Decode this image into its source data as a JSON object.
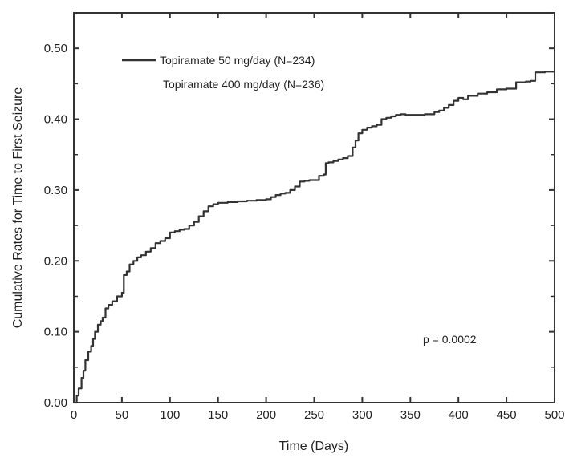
{
  "chart_data": {
    "type": "line",
    "xlabel": "Time (Days)",
    "ylabel": "Cumulative Rates for Time to First Seizure",
    "xlim": [
      0,
      500
    ],
    "ylim": [
      0,
      0.55
    ],
    "x_ticks": [
      0,
      50,
      100,
      150,
      200,
      250,
      300,
      350,
      400,
      450,
      500
    ],
    "x_tick_labels": [
      "0",
      "50",
      "100",
      "150",
      "200",
      "250",
      "300",
      "350",
      "400",
      "450",
      "500"
    ],
    "y_ticks": [
      0,
      0.1,
      0.2,
      0.3,
      0.4,
      0.5
    ],
    "y_tick_labels": [
      "0.00",
      "0.10",
      "0.20",
      "0.30",
      "0.40",
      "0.50"
    ],
    "grid": false,
    "legend_position": "top-left",
    "annotation": "p = 0.0002",
    "series": [
      {
        "name": "Topiramate 50 mg/day (N=234)",
        "color": "#333333",
        "x": [
          0,
          3,
          5,
          8,
          10,
          12,
          15,
          18,
          20,
          22,
          25,
          28,
          30,
          33,
          36,
          40,
          45,
          50,
          52,
          55,
          58,
          62,
          66,
          70,
          75,
          80,
          85,
          90,
          95,
          100,
          105,
          110,
          115,
          120,
          125,
          130,
          135,
          140,
          145,
          150,
          160,
          170,
          180,
          190,
          200,
          205,
          210,
          215,
          220,
          225,
          230,
          235,
          240,
          245,
          250,
          255,
          260,
          262,
          265,
          270,
          275,
          280,
          285,
          290,
          293,
          296,
          300,
          305,
          310,
          315,
          320,
          325,
          330,
          335,
          340,
          345,
          350,
          355,
          360,
          365,
          370,
          375,
          380,
          385,
          390,
          395,
          400,
          405,
          410,
          420,
          425,
          430,
          440,
          450,
          460,
          470,
          475,
          480,
          490,
          500
        ],
        "y": [
          0.0,
          0.01,
          0.02,
          0.035,
          0.045,
          0.06,
          0.072,
          0.08,
          0.09,
          0.1,
          0.11,
          0.115,
          0.12,
          0.133,
          0.138,
          0.143,
          0.15,
          0.155,
          0.18,
          0.185,
          0.195,
          0.2,
          0.205,
          0.208,
          0.213,
          0.218,
          0.225,
          0.228,
          0.232,
          0.24,
          0.242,
          0.244,
          0.245,
          0.25,
          0.255,
          0.263,
          0.27,
          0.277,
          0.28,
          0.282,
          0.283,
          0.284,
          0.285,
          0.286,
          0.287,
          0.29,
          0.293,
          0.295,
          0.296,
          0.3,
          0.305,
          0.312,
          0.313,
          0.314,
          0.314,
          0.32,
          0.322,
          0.338,
          0.339,
          0.341,
          0.343,
          0.345,
          0.348,
          0.36,
          0.37,
          0.38,
          0.385,
          0.388,
          0.39,
          0.392,
          0.4,
          0.402,
          0.404,
          0.406,
          0.407,
          0.406,
          0.406,
          0.406,
          0.406,
          0.407,
          0.407,
          0.41,
          0.412,
          0.416,
          0.42,
          0.426,
          0.43,
          0.428,
          0.433,
          0.436,
          0.436,
          0.438,
          0.442,
          0.443,
          0.452,
          0.453,
          0.454,
          0.466,
          0.467,
          0.467
        ]
      },
      {
        "name": "Topiramate 400 mg/day (N=236)",
        "color": "#333333",
        "x": [],
        "y": []
      }
    ]
  }
}
